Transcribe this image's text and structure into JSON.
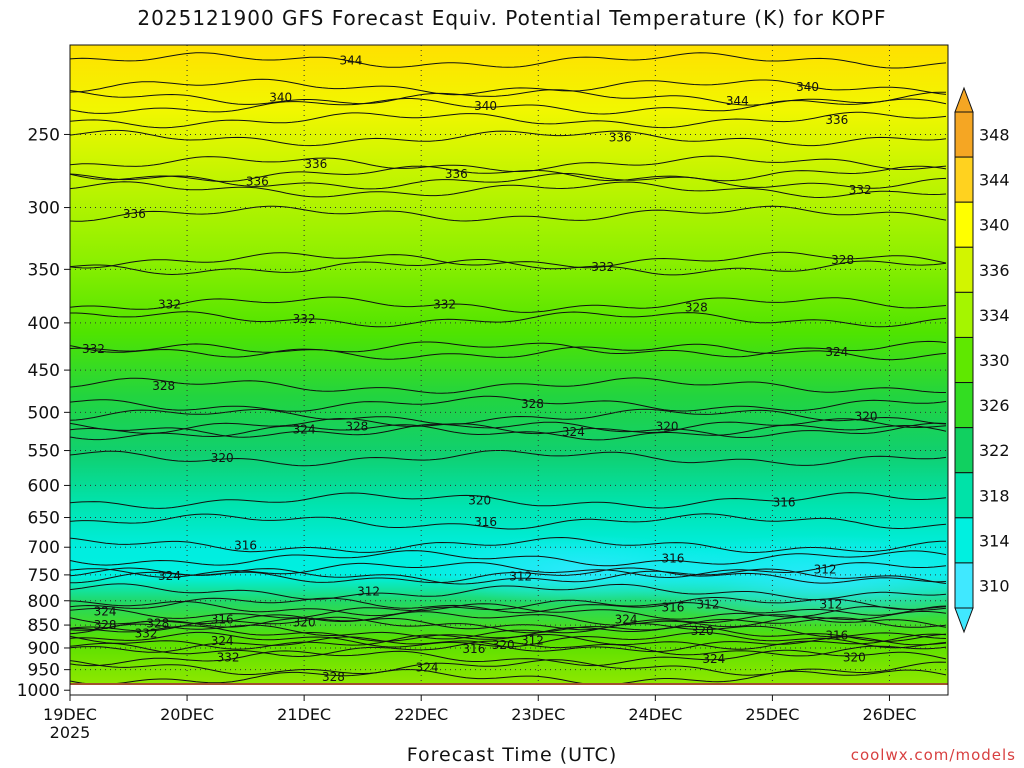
{
  "title": "2025121900 GFS Forecast Equiv. Potential Temperature (K) for KOPF",
  "credit": "coolwx.com/models",
  "colors": {
    "ground": "#a0522d",
    "contour": "#111111"
  },
  "chart_data": {
    "type": "heatmap",
    "title": "2025121900 GFS Forecast Equiv. Potential Temperature (K) for KOPF",
    "xlabel": "Forecast Time (UTC)",
    "ylabel": "",
    "x_ticks": [
      "19DEC",
      "20DEC",
      "21DEC",
      "22DEC",
      "23DEC",
      "24DEC",
      "25DEC",
      "26DEC"
    ],
    "x_sublabel": "2025",
    "xlim": [
      0,
      7.5
    ],
    "y_ticks": [
      250,
      300,
      350,
      400,
      450,
      500,
      550,
      600,
      650,
      700,
      750,
      800,
      850,
      900,
      950,
      1000
    ],
    "ylim": [
      200,
      1012
    ],
    "y_scale": "log-pressure (inverted)",
    "colorbar": {
      "levels": [
        348,
        344,
        340,
        336,
        334,
        330,
        326,
        322,
        318,
        314,
        310
      ],
      "colors": [
        "#f5a623",
        "#ffd21f",
        "#ffff00",
        "#d2f500",
        "#a5f500",
        "#5fe800",
        "#33dd22",
        "#11d060",
        "#00e2a8",
        "#00f0e0",
        "#40e8ff"
      ],
      "extend": "both"
    },
    "contour_interval": 4,
    "contour_labels": [
      {
        "value": 344,
        "x": 2.4,
        "p": 208
      },
      {
        "value": 340,
        "x": 1.8,
        "p": 228
      },
      {
        "value": 340,
        "x": 3.55,
        "p": 233
      },
      {
        "value": 340,
        "x": 6.3,
        "p": 222
      },
      {
        "value": 344,
        "x": 5.7,
        "p": 230
      },
      {
        "value": 336,
        "x": 4.7,
        "p": 252
      },
      {
        "value": 336,
        "x": 6.55,
        "p": 241
      },
      {
        "value": 336,
        "x": 2.1,
        "p": 269
      },
      {
        "value": 336,
        "x": 1.6,
        "p": 281
      },
      {
        "value": 336,
        "x": 3.3,
        "p": 276
      },
      {
        "value": 336,
        "x": 0.55,
        "p": 305
      },
      {
        "value": 332,
        "x": 6.75,
        "p": 287
      },
      {
        "value": 332,
        "x": 4.55,
        "p": 348
      },
      {
        "value": 332,
        "x": 0.85,
        "p": 382
      },
      {
        "value": 332,
        "x": 3.2,
        "p": 382
      },
      {
        "value": 332,
        "x": 2.0,
        "p": 396
      },
      {
        "value": 332,
        "x": 0.2,
        "p": 427
      },
      {
        "value": 328,
        "x": 6.6,
        "p": 342
      },
      {
        "value": 328,
        "x": 5.35,
        "p": 385
      },
      {
        "value": 328,
        "x": 0.8,
        "p": 468
      },
      {
        "value": 328,
        "x": 3.95,
        "p": 490
      },
      {
        "value": 328,
        "x": 2.45,
        "p": 518
      },
      {
        "value": 324,
        "x": 6.55,
        "p": 430
      },
      {
        "value": 324,
        "x": 2.0,
        "p": 522
      },
      {
        "value": 324,
        "x": 4.3,
        "p": 525
      },
      {
        "value": 320,
        "x": 5.1,
        "p": 518
      },
      {
        "value": 320,
        "x": 6.8,
        "p": 505
      },
      {
        "value": 320,
        "x": 1.3,
        "p": 560
      },
      {
        "value": 320,
        "x": 3.5,
        "p": 623
      },
      {
        "value": 316,
        "x": 6.1,
        "p": 626
      },
      {
        "value": 316,
        "x": 3.55,
        "p": 657
      },
      {
        "value": 316,
        "x": 1.5,
        "p": 697
      },
      {
        "value": 316,
        "x": 5.15,
        "p": 720
      },
      {
        "value": 312,
        "x": 3.85,
        "p": 753
      },
      {
        "value": 312,
        "x": 2.55,
        "p": 782
      },
      {
        "value": 312,
        "x": 6.45,
        "p": 740
      },
      {
        "value": 312,
        "x": 5.45,
        "p": 808
      },
      {
        "value": 312,
        "x": 6.5,
        "p": 808
      },
      {
        "value": 316,
        "x": 5.15,
        "p": 814
      },
      {
        "value": 316,
        "x": 1.3,
        "p": 838
      },
      {
        "value": 320,
        "x": 2.0,
        "p": 845
      },
      {
        "value": 324,
        "x": 0.85,
        "p": 752
      },
      {
        "value": 324,
        "x": 0.3,
        "p": 822
      },
      {
        "value": 328,
        "x": 0.3,
        "p": 850
      },
      {
        "value": 328,
        "x": 0.75,
        "p": 847
      },
      {
        "value": 332,
        "x": 0.65,
        "p": 868
      },
      {
        "value": 324,
        "x": 1.3,
        "p": 885
      },
      {
        "value": 332,
        "x": 1.35,
        "p": 922
      },
      {
        "value": 324,
        "x": 4.75,
        "p": 838
      },
      {
        "value": 320,
        "x": 5.4,
        "p": 863
      },
      {
        "value": 316,
        "x": 3.45,
        "p": 902
      },
      {
        "value": 320,
        "x": 3.7,
        "p": 893
      },
      {
        "value": 312,
        "x": 3.95,
        "p": 883
      },
      {
        "value": 316,
        "x": 6.55,
        "p": 872
      },
      {
        "value": 320,
        "x": 6.7,
        "p": 922
      },
      {
        "value": 324,
        "x": 3.05,
        "p": 945
      },
      {
        "value": 324,
        "x": 5.5,
        "p": 925
      },
      {
        "value": 328,
        "x": 2.25,
        "p": 968
      }
    ]
  }
}
